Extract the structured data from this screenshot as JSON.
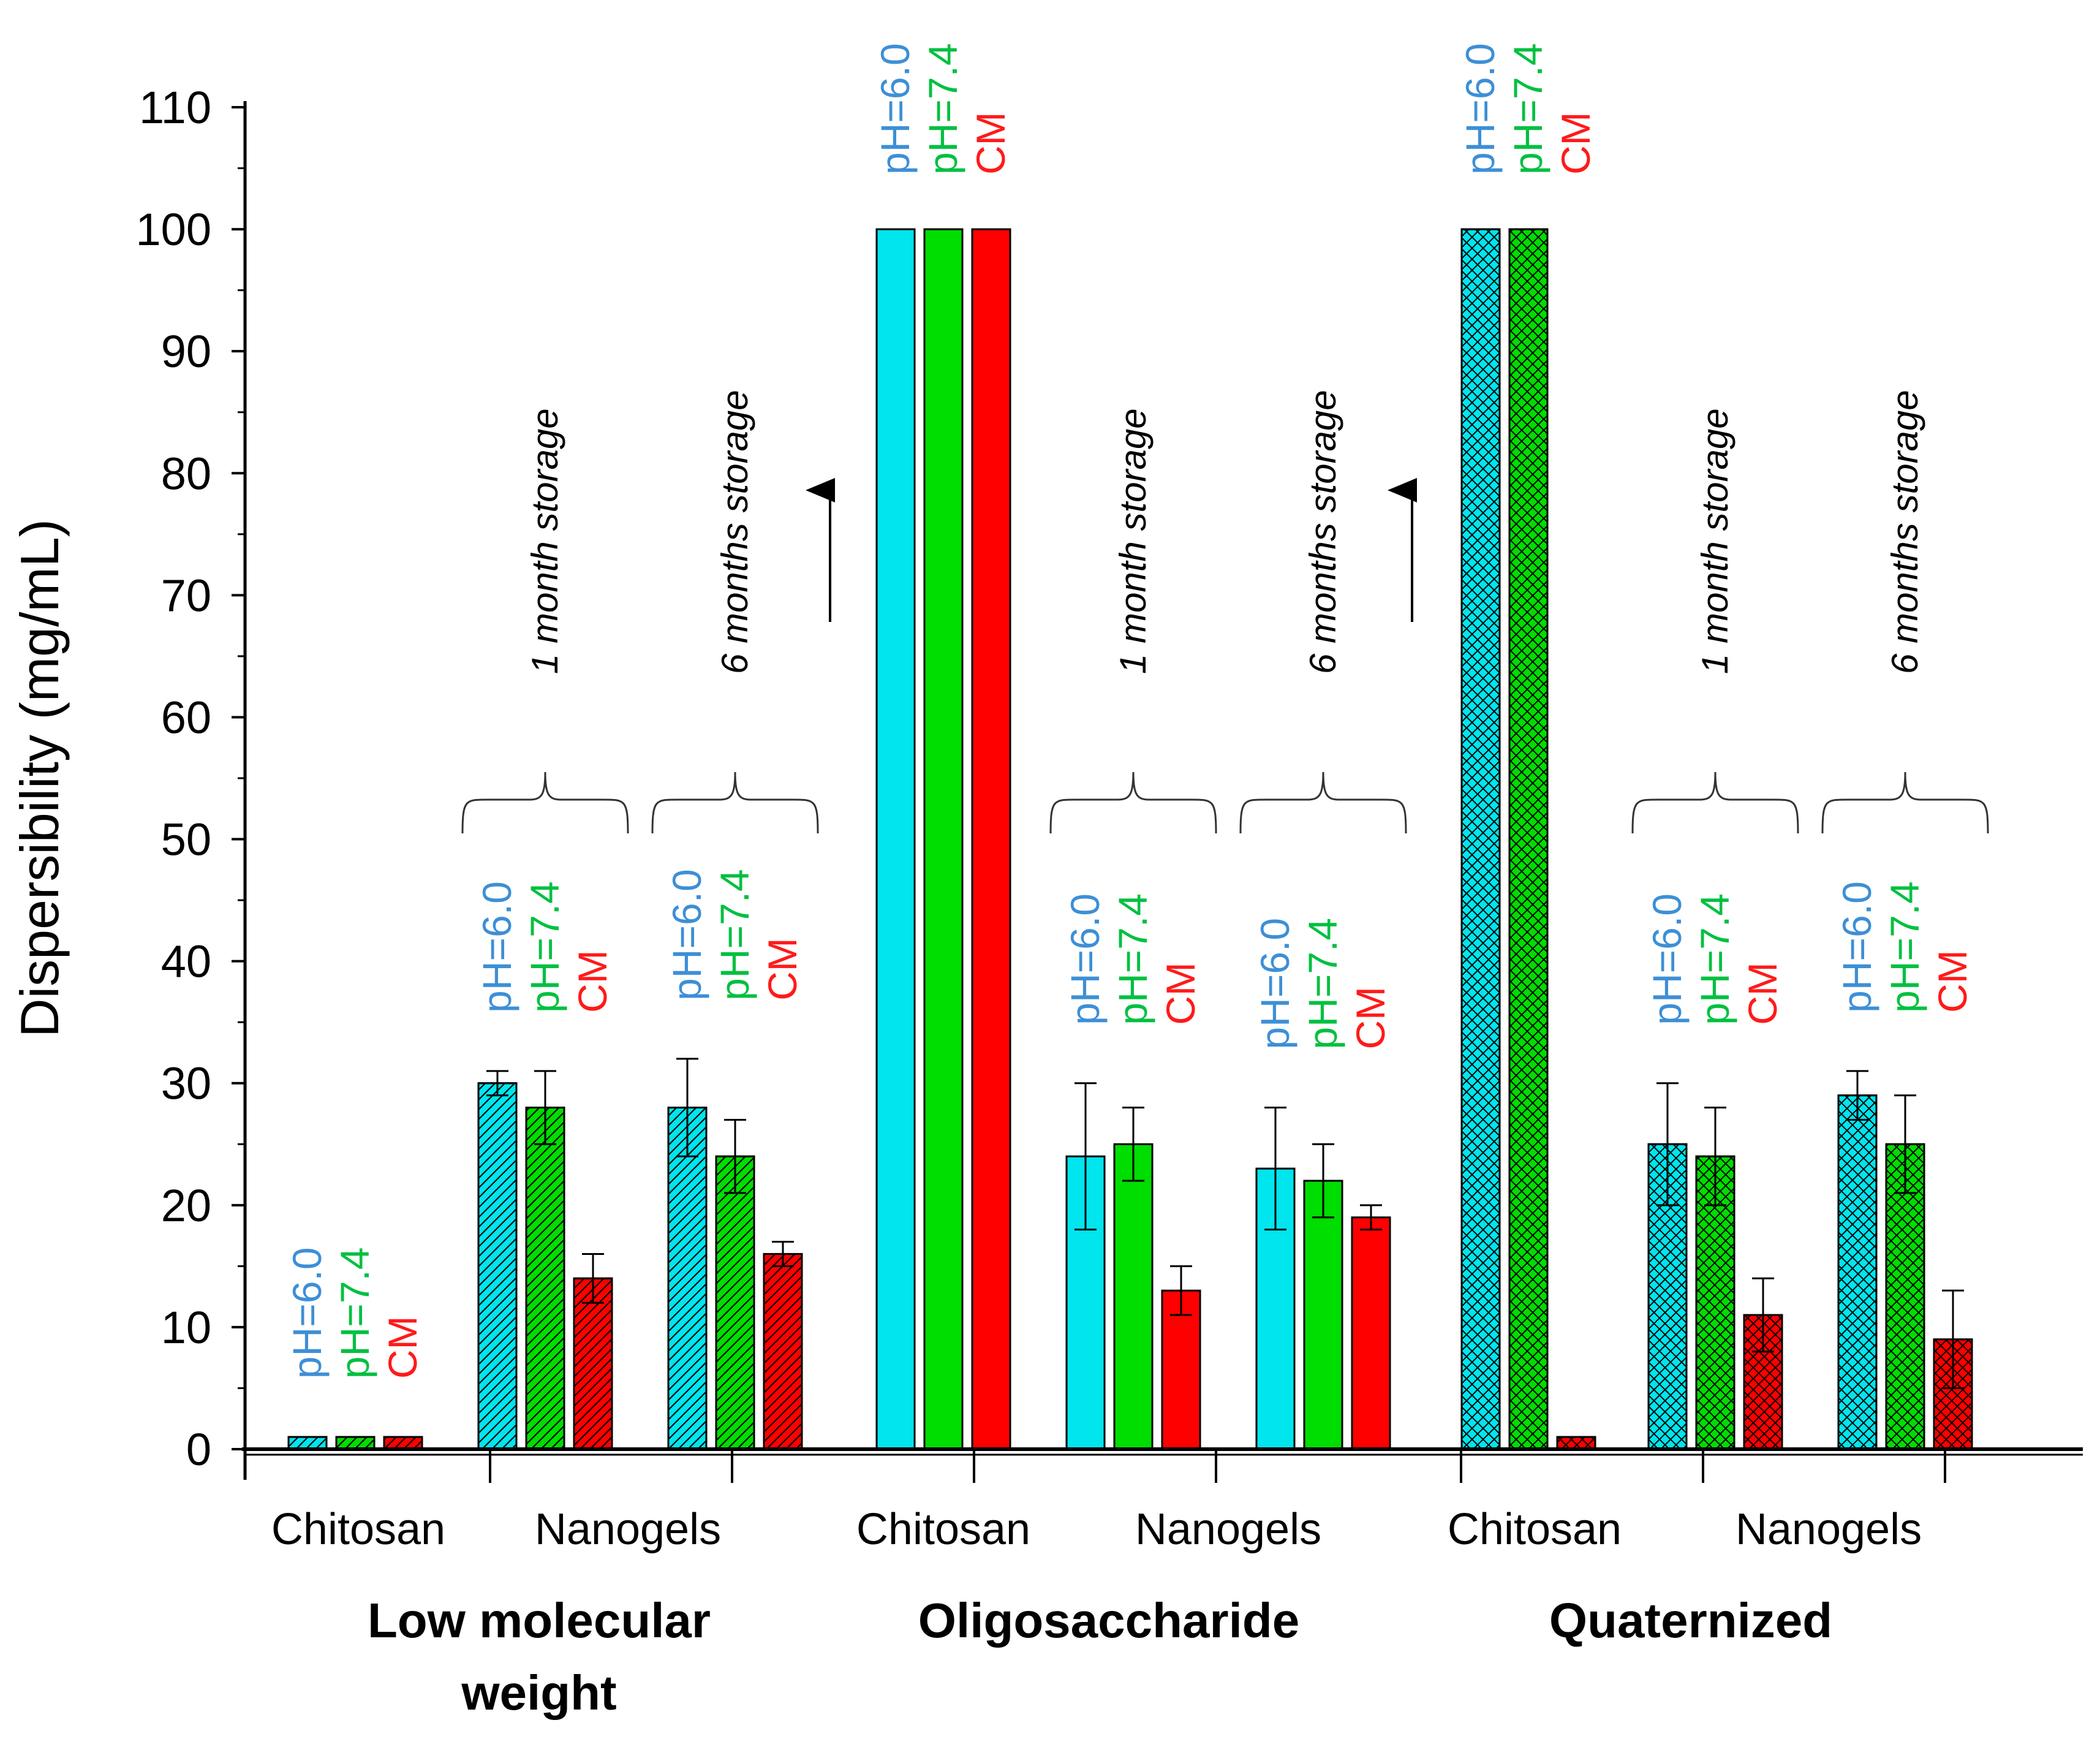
{
  "chart_data": {
    "type": "bar",
    "ylabel": "Dispersibility (mg/mL)",
    "xlabel": "",
    "ylim": [
      0,
      110
    ],
    "y_ticks": [
      0,
      10,
      20,
      30,
      40,
      50,
      60,
      70,
      80,
      90,
      100,
      110
    ],
    "series": [
      {
        "name": "pH=6.0",
        "color": "#00e5ee",
        "label_color": "#3d8fd6"
      },
      {
        "name": "pH=7.4",
        "color": "#00dd00",
        "label_color": "#00c040"
      },
      {
        "name": "CM",
        "color": "#ff0000",
        "label_color": "#ff1a1a"
      }
    ],
    "groups": [
      {
        "name": "Low molecular\nweight",
        "name_lines": [
          "Low molecular",
          "weight"
        ],
        "pattern": "diag",
        "clusters": [
          {
            "label": "Chitosan",
            "values": [
              1,
              1,
              1
            ],
            "errors": [
              null,
              null,
              null
            ],
            "storage": null
          },
          {
            "label": "",
            "values": [
              30,
              28,
              14
            ],
            "errors": [
              1,
              3,
              2
            ],
            "storage": "1 month storage"
          },
          {
            "label": "",
            "values": [
              28,
              24,
              16
            ],
            "errors": [
              4,
              3,
              1
            ],
            "storage": "6 months storage"
          }
        ],
        "nanogels_label": "Nanogels"
      },
      {
        "name": "Oligosaccharide",
        "name_lines": [
          "Oligosaccharide"
        ],
        "pattern": "solid",
        "clusters": [
          {
            "label": "Chitosan",
            "values": [
              100,
              100,
              100
            ],
            "errors": [
              null,
              null,
              null
            ],
            "storage": null
          },
          {
            "label": "",
            "values": [
              24,
              25,
              13
            ],
            "errors": [
              6,
              3,
              2
            ],
            "storage": "1 month storage"
          },
          {
            "label": "",
            "values": [
              23,
              22,
              19
            ],
            "errors": [
              5,
              3,
              1
            ],
            "storage": "6 months storage"
          }
        ],
        "nanogels_label": "Nanogels"
      },
      {
        "name": "Quaternized",
        "name_lines": [
          "Quaternized"
        ],
        "pattern": "cross",
        "clusters": [
          {
            "label": "Chitosan",
            "values": [
              100,
              100,
              1
            ],
            "errors": [
              null,
              null,
              null
            ],
            "storage": null
          },
          {
            "label": "",
            "values": [
              25,
              24,
              11
            ],
            "errors": [
              5,
              4,
              3
            ],
            "storage": "1 month storage"
          },
          {
            "label": "",
            "values": [
              29,
              25,
              9
            ],
            "errors": [
              2,
              4,
              4
            ],
            "storage": "6 months storage"
          }
        ],
        "nanogels_label": "Nanogels"
      }
    ]
  }
}
